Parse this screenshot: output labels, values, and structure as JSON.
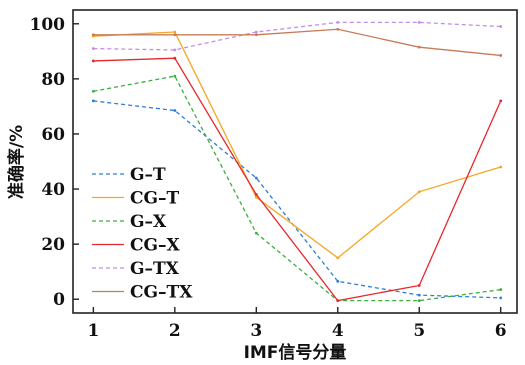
{
  "chart_data": {
    "type": "line",
    "xlabel": "IMF信号分量",
    "ylabel": "准确率/%",
    "x": [
      1,
      2,
      3,
      4,
      5,
      6
    ],
    "xlim": [
      0.75,
      6.2
    ],
    "ylim": [
      -5,
      105
    ],
    "yticks": [
      0,
      20,
      40,
      60,
      80,
      100
    ],
    "legend_position": "bottom-left",
    "grid": false,
    "series": [
      {
        "name": "G–T",
        "values": [
          72,
          68.5,
          44,
          6.5,
          1.5,
          0.5
        ],
        "color": "#2f7fd6",
        "dashed": true
      },
      {
        "name": "CG–T",
        "values": [
          95.5,
          97,
          37,
          15,
          39,
          48
        ],
        "color": "#f5a623",
        "dashed": false
      },
      {
        "name": "G–X",
        "values": [
          75.5,
          81,
          24,
          -0.5,
          -0.5,
          3.5
        ],
        "color": "#3dae3d",
        "dashed": true
      },
      {
        "name": "CG–X",
        "values": [
          86.5,
          87.5,
          38,
          -0.5,
          5,
          72
        ],
        "color": "#e8272b",
        "dashed": false
      },
      {
        "name": "G–TX",
        "values": [
          91,
          90.5,
          97,
          100.5,
          100.5,
          99
        ],
        "color": "#c58ce8",
        "dashed": true
      },
      {
        "name": "CG–TX",
        "values": [
          96,
          96,
          96,
          98,
          91.5,
          88.5
        ],
        "color": "#c77b5b",
        "dashed": false
      }
    ]
  }
}
